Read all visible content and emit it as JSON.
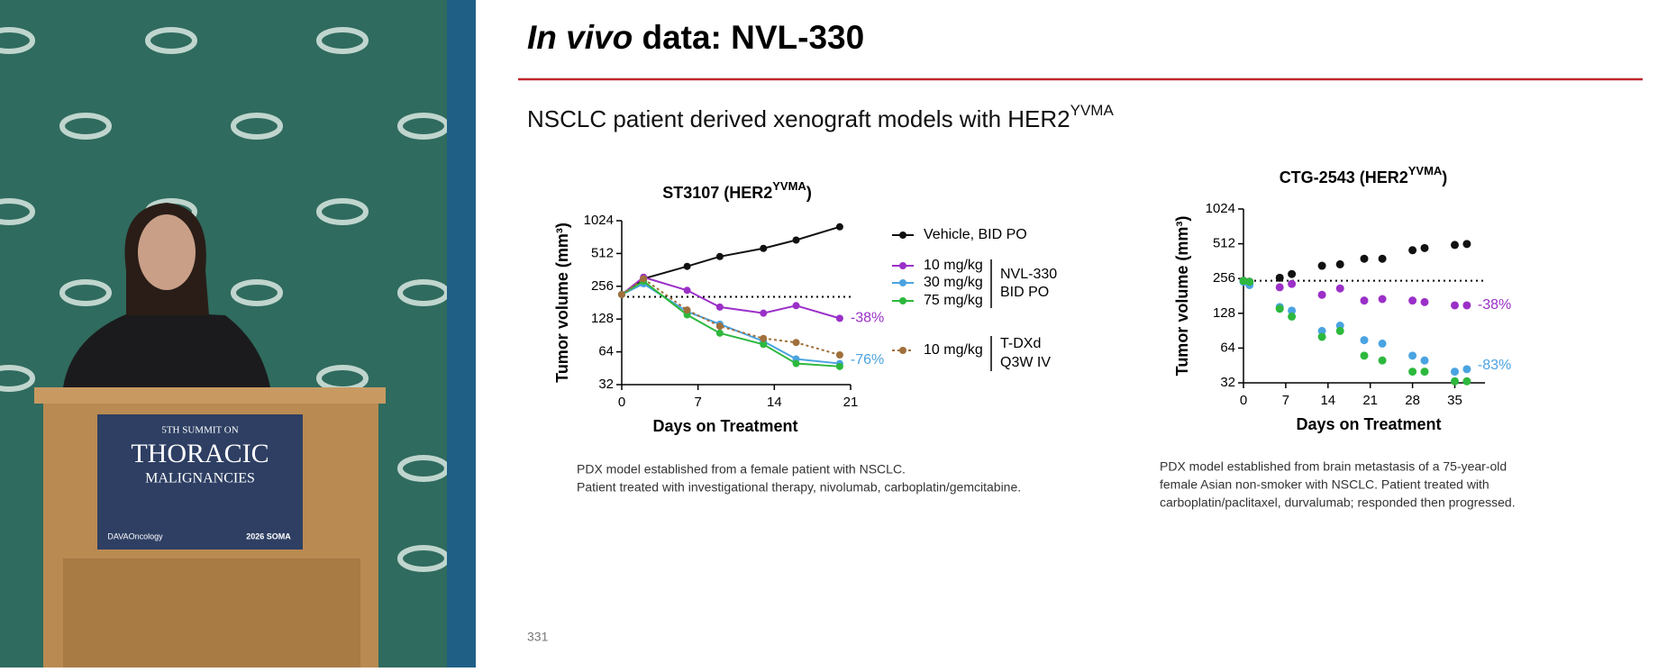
{
  "slide": {
    "title_italic": "In vivo",
    "title_rest": " data: NVL-330",
    "subtitle": "NSCLC patient derived xenograft models with HER2",
    "subtitle_sup": "YVMA",
    "page_number": "331",
    "footnotes": [
      [
        "PDX model established from a female patient with NSCLC.",
        "Patient treated with investigational therapy, nivolumab, carboplatin/gemcitabine."
      ],
      [
        "PDX model established from brain metastasis of a 75-year-old",
        "female Asian non-smoker with NSCLC. Patient treated with",
        "carboplatin/paclitaxel, durvalumab; responded then progressed."
      ]
    ]
  },
  "podium": {
    "line1": "5TH SUMMIT ON",
    "line2": "THORACIC",
    "line3": "MALIGNANCIES",
    "logo": "DAVAOncology",
    "badge": "2026 SOMA"
  },
  "chart_data": [
    {
      "type": "line",
      "title": "ST3107 (HER2",
      "title_sup": "YVMA",
      "title_end": ")",
      "x_label": "Days on Treatment",
      "y_label": "Tumor volume (mm³)",
      "yscale": "log2",
      "x": [
        0,
        2,
        6,
        9,
        13,
        16,
        20
      ],
      "xlim": [
        0,
        21
      ],
      "xticks": [
        0,
        7,
        14,
        21
      ],
      "ylim": [
        32,
        1024
      ],
      "yticks": [
        32,
        64,
        128,
        256,
        512,
        1024
      ],
      "ref_line": 205,
      "series": [
        {
          "name": "Vehicle, BID PO",
          "color": "#111111",
          "values": [
            215,
            300,
            390,
            480,
            570,
            680,
            900
          ]
        },
        {
          "name": "10 mg/kg",
          "color": "#9b30c8",
          "values": [
            215,
            310,
            235,
            165,
            145,
            170,
            130
          ]
        },
        {
          "name": "30 mg/kg",
          "color": "#4aa3e0",
          "values": [
            215,
            270,
            150,
            115,
            80,
            55,
            50
          ]
        },
        {
          "name": "75 mg/kg",
          "color": "#2db83d",
          "values": [
            215,
            285,
            140,
            95,
            75,
            50,
            47
          ]
        },
        {
          "name": "10 mg/kg",
          "color": "#a0703c",
          "line_style": "dotted",
          "values": [
            215,
            300,
            155,
            110,
            85,
            78,
            60
          ]
        }
      ],
      "legend_notes": [
        "NVL-330",
        "BID PO",
        "T-DXd",
        "Q3W IV"
      ],
      "annotations": [
        "-38%",
        "-76%"
      ]
    },
    {
      "type": "scatter",
      "title": "CTG-2543 (HER2",
      "title_sup": "YVMA",
      "title_end": ")",
      "x_label": "Days on Treatment",
      "y_label": "Tumor volume (mm³)",
      "yscale": "log2",
      "x": [
        0,
        1,
        6,
        8,
        13,
        16,
        20,
        23,
        28,
        30,
        35,
        37
      ],
      "xlim": [
        0,
        40
      ],
      "xticks": [
        0,
        7,
        14,
        21,
        28,
        35
      ],
      "ylim": [
        32,
        1024
      ],
      "yticks": [
        32,
        64,
        128,
        256,
        512,
        1024
      ],
      "ref_line": 245,
      "series": [
        {
          "color": "#111111",
          "values": [
            245,
            240,
            260,
            280,
            330,
            340,
            380,
            380,
            450,
            470,
            500,
            510
          ]
        },
        {
          "color": "#9b30c8",
          "values": [
            245,
            240,
            215,
            230,
            185,
            210,
            165,
            170,
            165,
            160,
            150,
            150
          ]
        },
        {
          "color": "#4aa3e0",
          "values": [
            240,
            225,
            145,
            135,
            90,
            100,
            75,
            70,
            55,
            50,
            40,
            42
          ]
        },
        {
          "color": "#2db83d",
          "values": [
            245,
            240,
            140,
            120,
            80,
            90,
            55,
            50,
            40,
            40,
            33,
            33
          ]
        }
      ],
      "annotations": [
        "-38%",
        "-83%"
      ]
    }
  ]
}
